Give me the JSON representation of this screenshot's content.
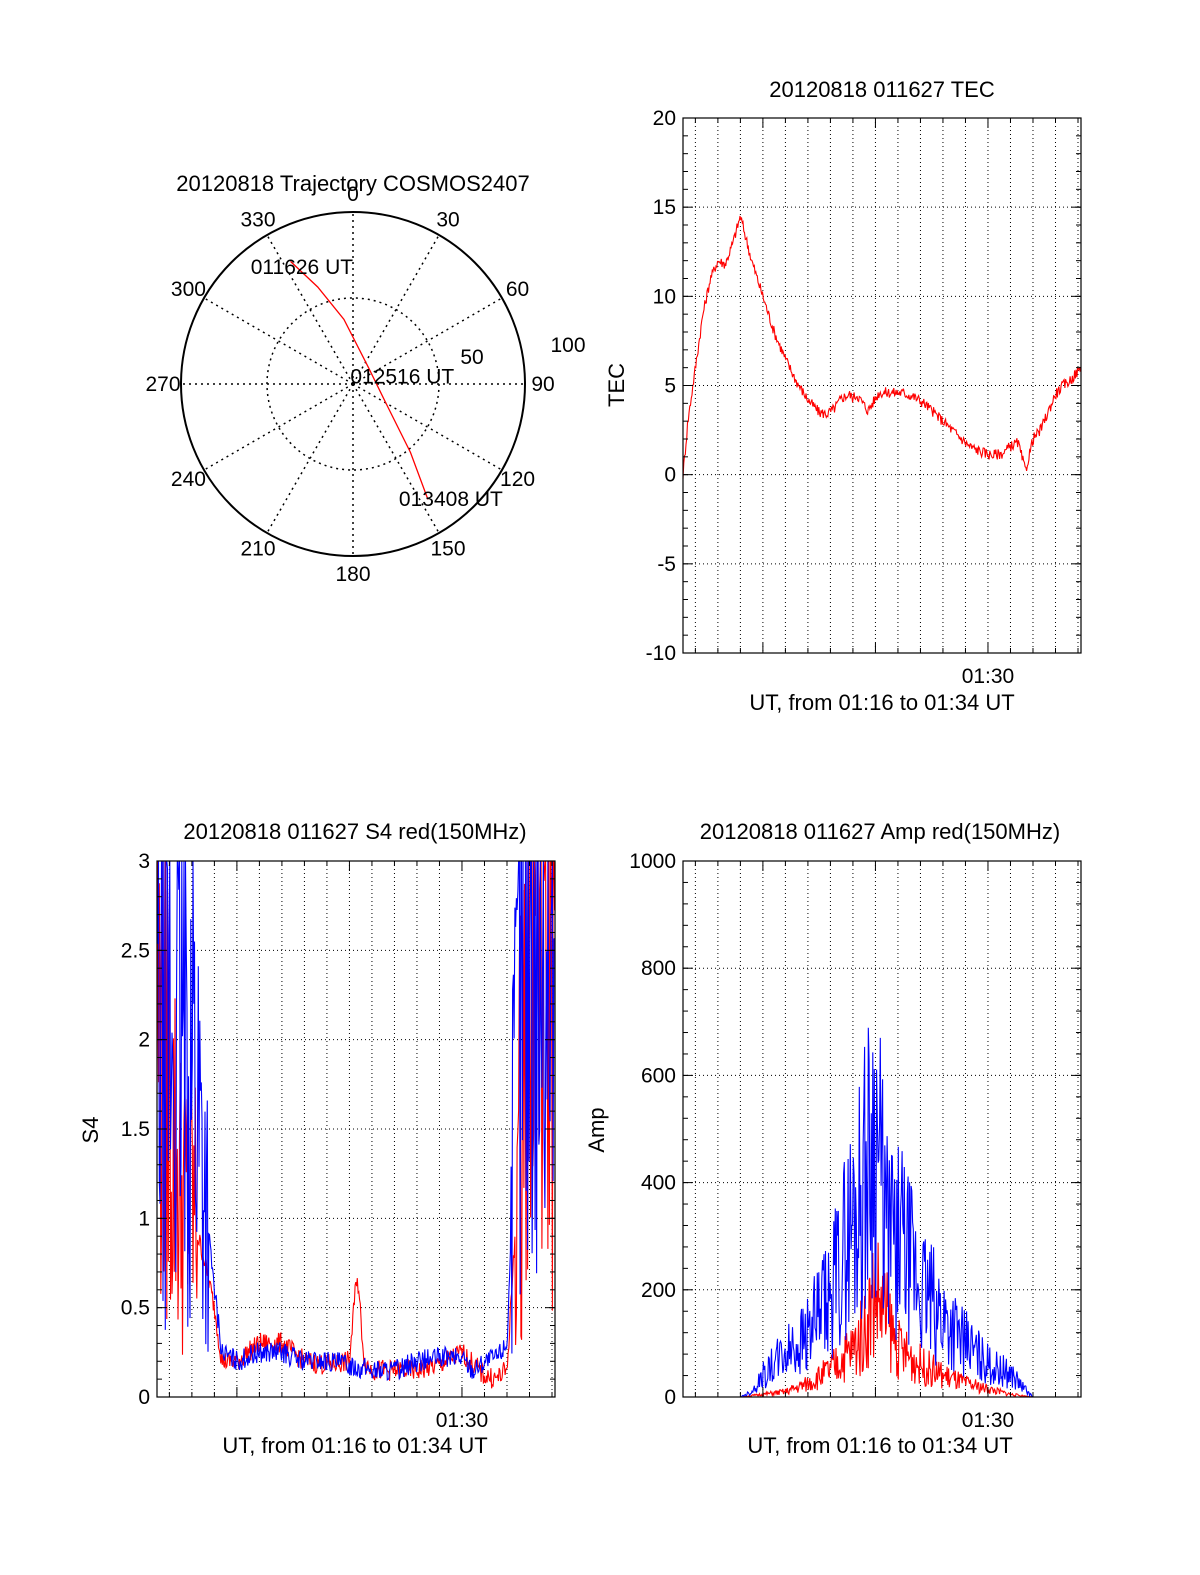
{
  "colors": {
    "red": "#ff0000",
    "blue": "#0000ff",
    "grid": "#000000",
    "axis": "#000000"
  },
  "chart_data": [
    {
      "type": "polar",
      "title": "20120818 Trajectory COSMOS2407",
      "angle_labels": [
        "0",
        "30",
        "60",
        "90",
        "120",
        "150",
        "180",
        "210",
        "240",
        "270",
        "300",
        "330"
      ],
      "radius_labels": [
        "50",
        "100"
      ],
      "rlim": [
        0,
        100
      ],
      "grid": true,
      "series": [
        {
          "color": "red",
          "points": [
            {
              "az": 333,
              "r": 80
            },
            {
              "az": 340,
              "r": 60
            },
            {
              "az": 352,
              "r": 38
            },
            {
              "az": 45,
              "r": 13
            },
            {
              "az": 120,
              "r": 22
            },
            {
              "az": 140,
              "r": 52
            },
            {
              "az": 147,
              "r": 80
            }
          ]
        }
      ],
      "annotations": [
        {
          "text": "011626 UT",
          "az": 342,
          "r": 72
        },
        {
          "text": "012516 UT",
          "az": 82,
          "r": 36
        },
        {
          "text": "013408 UT",
          "az": 136,
          "r": 92
        }
      ]
    },
    {
      "type": "line",
      "title": "20120818 011627 TEC",
      "xlabel": "UT, from 01:16 to 01:34 UT",
      "ylabel": "TEC",
      "xlim": [
        "01:16:27",
        "01:34:08"
      ],
      "x_ticks": [
        "01:30"
      ],
      "ylim": [
        -10,
        20
      ],
      "y_ticks": [
        "-10",
        "-5",
        "0",
        "5",
        "10",
        "15",
        "20"
      ],
      "grid": true,
      "series": [
        {
          "color": "red",
          "x": [
            "01:16:27",
            "01:16:40",
            "01:17:00",
            "01:17:20",
            "01:17:40",
            "01:18:00",
            "01:18:20",
            "01:18:40",
            "01:19:00",
            "01:19:30",
            "01:20:00",
            "01:20:30",
            "01:21:00",
            "01:21:30",
            "01:22:00",
            "01:22:30",
            "01:22:50",
            "01:23:10",
            "01:23:30",
            "01:23:50",
            "01:24:00",
            "01:24:10",
            "01:24:40",
            "01:25:10",
            "01:25:40",
            "01:26:10",
            "01:26:40",
            "01:27:10",
            "01:27:40",
            "01:28:10",
            "01:28:40",
            "01:29:10",
            "01:29:40",
            "01:30:10",
            "01:30:40",
            "01:31:00",
            "01:31:20",
            "01:31:40",
            "01:32:00",
            "01:32:20",
            "01:32:40",
            "01:33:00",
            "01:33:20",
            "01:33:40",
            "01:34:08"
          ],
          "y": [
            0,
            3,
            6,
            9,
            11,
            12,
            11.8,
            13,
            14.5,
            12,
            10,
            8,
            6.5,
            5.2,
            4.2,
            3.5,
            3.4,
            3.7,
            4.3,
            4.5,
            4.3,
            4.5,
            3.6,
            4.6,
            4.6,
            4.6,
            4.4,
            4.0,
            3.4,
            2.8,
            2.2,
            1.6,
            1.3,
            1.1,
            1.2,
            1.6,
            1.8,
            0.2,
            2.0,
            2.5,
            3.5,
            4.5,
            5.0,
            5.3,
            6.0
          ]
        }
      ]
    },
    {
      "type": "line",
      "title": "20120818 011627 S4 red(150MHz)",
      "xlabel": "UT, from 01:16 to 01:34 UT",
      "ylabel": "S4",
      "xlim": [
        "01:16:27",
        "01:34:08"
      ],
      "x_ticks": [
        "01:30"
      ],
      "ylim": [
        0,
        3
      ],
      "y_ticks": [
        "0",
        "0.5",
        "1",
        "1.5",
        "2",
        "2.5",
        "3"
      ],
      "grid": true,
      "series": [
        {
          "color": "red",
          "x": [
            "01:16:27",
            "01:17:00",
            "01:17:30",
            "01:18:00",
            "01:18:30",
            "01:19:00",
            "01:19:20",
            "01:19:40",
            "01:20:00",
            "01:21:00",
            "01:22:00",
            "01:22:30",
            "01:23:00",
            "01:24:00",
            "01:25:00",
            "01:25:20",
            "01:25:40",
            "01:26:00",
            "01:27:00",
            "01:28:00",
            "01:29:00",
            "01:30:00",
            "01:31:00",
            "01:31:30",
            "01:32:00",
            "01:32:30",
            "01:33:00",
            "01:33:30",
            "01:34:08"
          ],
          "y": [
            2.0,
            1.5,
            1.0,
            1.0,
            0.8,
            0.5,
            0.2,
            0.2,
            0.2,
            0.3,
            0.3,
            0.25,
            0.2,
            0.18,
            0.2,
            0.7,
            0.2,
            0.15,
            0.15,
            0.15,
            0.18,
            0.25,
            0.12,
            0.1,
            0.15,
            1.2,
            2.5,
            2.5,
            2.3
          ]
        },
        {
          "color": "blue",
          "x": [
            "01:16:27",
            "01:17:00",
            "01:17:30",
            "01:18:00",
            "01:18:30",
            "01:19:00",
            "01:19:20",
            "01:20:00",
            "01:21:00",
            "01:22:00",
            "01:23:00",
            "01:24:00",
            "01:25:00",
            "01:26:00",
            "01:27:00",
            "01:28:00",
            "01:29:00",
            "01:30:00",
            "01:30:30",
            "01:31:00",
            "01:31:30",
            "01:32:00",
            "01:32:30",
            "01:33:00",
            "01:33:30",
            "01:34:08"
          ],
          "y": [
            2.0,
            1.8,
            1.8,
            1.9,
            1.2,
            0.6,
            0.25,
            0.2,
            0.25,
            0.25,
            0.2,
            0.2,
            0.18,
            0.15,
            0.15,
            0.2,
            0.22,
            0.22,
            0.15,
            0.2,
            0.22,
            0.3,
            2.0,
            2.8,
            2.6,
            2.2
          ]
        }
      ]
    },
    {
      "type": "line",
      "title": "20120818 011627 Amp red(150MHz)",
      "xlabel": "UT, from 01:16 to 01:34 UT",
      "ylabel": "Amp",
      "xlim": [
        "01:16:27",
        "01:34:08"
      ],
      "x_ticks": [
        "01:30"
      ],
      "ylim": [
        0,
        1000
      ],
      "y_ticks": [
        "0",
        "200",
        "400",
        "600",
        "800",
        "1000"
      ],
      "grid": true,
      "series": [
        {
          "color": "red",
          "x": [
            "01:16:27",
            "01:18:00",
            "01:19:00",
            "01:20:00",
            "01:21:00",
            "01:22:00",
            "01:23:00",
            "01:24:00",
            "01:24:30",
            "01:25:00",
            "01:26:00",
            "01:27:00",
            "01:28:00",
            "01:29:00",
            "01:30:00",
            "01:30:30",
            "01:31:00",
            "01:32:00",
            "01:33:00",
            "01:34:08"
          ],
          "y": [
            0,
            0,
            0,
            5,
            10,
            25,
            50,
            90,
            120,
            200,
            90,
            60,
            40,
            25,
            15,
            10,
            5,
            0,
            0,
            0
          ]
        },
        {
          "color": "blue",
          "x": [
            "01:16:27",
            "01:18:00",
            "01:19:00",
            "01:19:30",
            "01:20:00",
            "01:21:00",
            "01:22:00",
            "01:22:30",
            "01:23:00",
            "01:23:30",
            "01:24:00",
            "01:24:30",
            "01:25:00",
            "01:25:30",
            "01:26:00",
            "01:27:00",
            "01:28:00",
            "01:29:00",
            "01:30:00",
            "01:30:30",
            "01:31:00",
            "01:31:30",
            "01:32:00",
            "01:33:00",
            "01:34:08"
          ],
          "y": [
            0,
            0,
            0,
            10,
            40,
            80,
            120,
            150,
            180,
            260,
            330,
            400,
            500,
            300,
            300,
            200,
            150,
            100,
            60,
            50,
            45,
            20,
            0,
            0,
            0
          ]
        }
      ]
    }
  ]
}
